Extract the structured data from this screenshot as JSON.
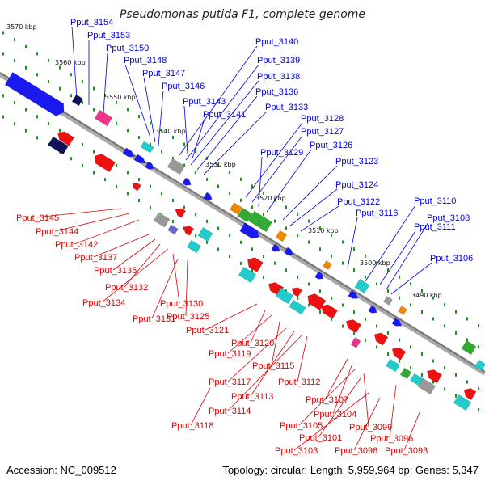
{
  "title": "Pseudomonas putida F1, complete genome",
  "footer": {
    "accession": "Accession: NC_009512",
    "topology": "Topology: circular; Length: 5,959,964 bp; Genes: 5,347"
  },
  "colors": {
    "backbone": "#888888",
    "tick": "#119911",
    "upper_labels": "#0000dd",
    "lower_labels": "#dd0000"
  },
  "kbp_ticks": [
    {
      "label": "3570 kbp"
    },
    {
      "label": "3560 kbp"
    },
    {
      "label": "3550 kbp"
    },
    {
      "label": "3540 kbp"
    },
    {
      "label": "3530 kbp"
    },
    {
      "label": "3520 kbp"
    },
    {
      "label": "3510 kbp"
    },
    {
      "label": "3500 kbp"
    },
    {
      "label": "3490 kbp"
    }
  ],
  "upper_labels": [
    "Pput_3154",
    "Pput_3153",
    "Pput_3150",
    "Pput_3148",
    "Pput_3147",
    "Pput_3146",
    "Pput_3143",
    "Pput_3141",
    "Pput_3140",
    "Pput_3139",
    "Pput_3138",
    "Pput_3136",
    "Pput_3133",
    "Pput_3128",
    "Pput_3127",
    "Pput_3129",
    "Pput_3126",
    "Pput_3123",
    "Pput_3124",
    "Pput_3122",
    "Pput_3116",
    "Pput_3110",
    "Pput_3111",
    "Pput_3108",
    "Pput_3106"
  ],
  "lower_labels": [
    "Pput_3145",
    "Pput_3144",
    "Pput_3142",
    "Pput_3137",
    "Pput_3135",
    "Pput_3132",
    "Pput_3134",
    "Pput_3130",
    "Pput_3131",
    "Pput_3125",
    "Pput_3121",
    "Pput_3120",
    "Pput_3119",
    "Pput_3115",
    "Pput_3117",
    "Pput_3112",
    "Pput_3113",
    "Pput_3107",
    "Pput_3114",
    "Pput_3104",
    "Pput_3105",
    "Pput_3118",
    "Pput_3099",
    "Pput_3101",
    "Pput_3096",
    "Pput_3103",
    "Pput_3098",
    "Pput_3093"
  ]
}
